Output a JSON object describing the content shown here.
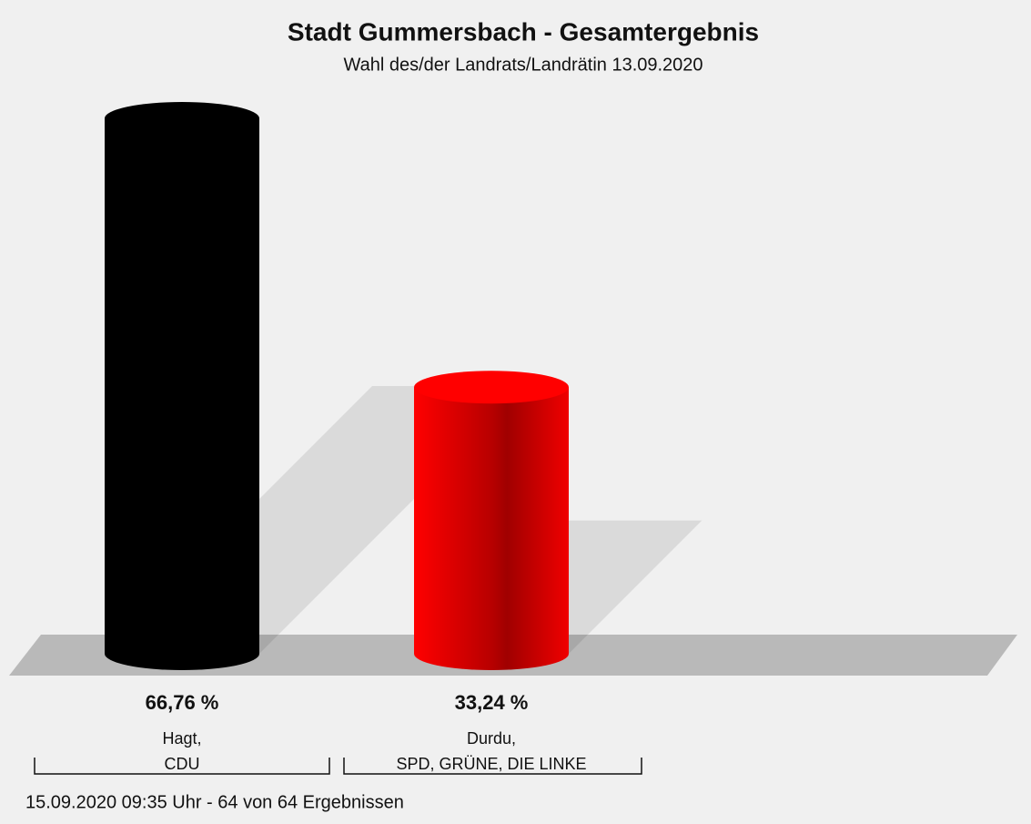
{
  "chart_data": {
    "type": "bar",
    "title": "Stadt Gummersbach - Gesamtergebnis",
    "subtitle": "Wahl des/der Landrats/Landrätin 13.09.2020",
    "categories": [
      [
        "Hagt,",
        "CDU"
      ],
      [
        "Durdu,",
        "SPD, GRÜNE, DIE LINKE"
      ]
    ],
    "values": [
      66.76,
      33.24
    ],
    "value_labels": [
      "66,76 %",
      "33,24 %"
    ],
    "colors": [
      "#000000",
      "#ff0000"
    ],
    "footnote": "15.09.2020 09:35 Uhr - 64 von 64 Ergebnissen"
  }
}
